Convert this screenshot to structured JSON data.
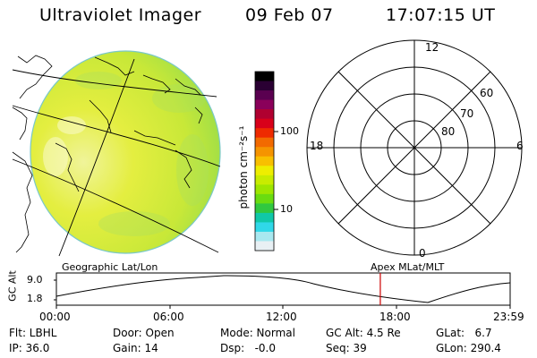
{
  "header": {
    "instrument": "Ultraviolet Imager",
    "date": "09 Feb 07",
    "time": "17:07:15 UT"
  },
  "colorbar": {
    "label": "photon cm⁻²s⁻¹",
    "ticks": [
      "100",
      "10"
    ],
    "colors": [
      "#000000",
      "#2a0033",
      "#5a0050",
      "#8a005a",
      "#b00030",
      "#d8001a",
      "#ee2a00",
      "#f26a00",
      "#f59400",
      "#f8c000",
      "#eeee00",
      "#c8ec00",
      "#9ee600",
      "#6adc10",
      "#30c840",
      "#10c8a8",
      "#30d8e8",
      "#a8e8f0",
      "#e8f0f4"
    ]
  },
  "polar_plot": {
    "hour_labels": {
      "top": "12",
      "left": "18",
      "right": "6",
      "bottom": "0"
    },
    "lat_labels": [
      "60",
      "70",
      "80"
    ]
  },
  "timeline": {
    "left_label": "Geographic Lat/Lon",
    "right_label": "Apex MLat/MLT",
    "y_axis_title": "GC Alt",
    "y_ticks": [
      "9.0",
      "1.8"
    ],
    "x_ticks": [
      "00:00",
      "06:00",
      "12:00",
      "18:00",
      "23:59"
    ],
    "marker_time": "17:07:15",
    "marker_color": "#cc0000"
  },
  "status": {
    "flt": "Flt: LBHL",
    "ip": "IP: 36.0",
    "door": "Door: Open",
    "gain": "Gain: 14",
    "mode": "Mode: Normal",
    "dsp": "Dsp:   -0.0",
    "gcalt": "GC Alt: 4.5 Re",
    "seq": "Seq: 39",
    "glat": "GLat:   6.7",
    "glon": "GLon: 290.4"
  }
}
